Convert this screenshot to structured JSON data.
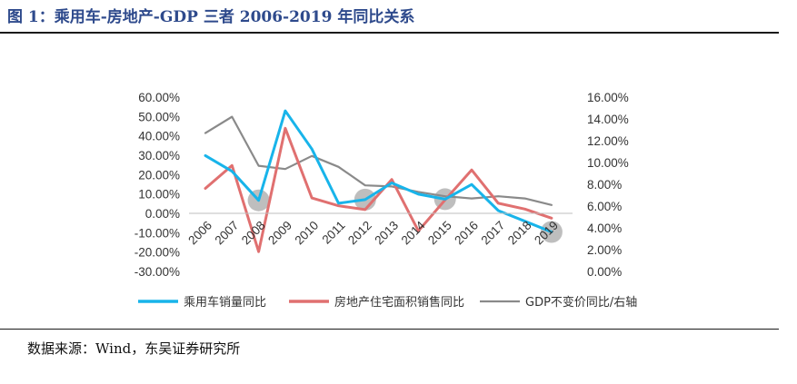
{
  "figure": {
    "title": "图 1：乘用车-房地产-GDP 三者 2006-2019 年同比关系",
    "source": "数据来源：Wind，东吴证券研究所"
  },
  "chart_data": {
    "type": "line",
    "categories": [
      "2006",
      "2007",
      "2008",
      "2009",
      "2010",
      "2011",
      "2012",
      "2013",
      "2014",
      "2015",
      "2016",
      "2017",
      "2018",
      "2019"
    ],
    "y_left": {
      "ticks": [
        "60.00%",
        "50.00%",
        "40.00%",
        "30.00%",
        "20.00%",
        "10.00%",
        "0.00%",
        "-10.00%",
        "-20.00%",
        "-30.00%"
      ],
      "ylim": [
        -30,
        60
      ]
    },
    "y_right": {
      "ticks": [
        "16.00%",
        "14.00%",
        "12.00%",
        "10.00%",
        "8.00%",
        "6.00%",
        "4.00%",
        "2.00%",
        "0.00%"
      ],
      "ylim": [
        0,
        16
      ]
    },
    "grid": false,
    "legend_position": "bottom",
    "series": [
      {
        "name": "乘用车销量同比",
        "axis": "left",
        "color": "#18b4ea",
        "values": [
          29.8,
          21.7,
          6.7,
          52.9,
          33.2,
          5.2,
          7.1,
          15.7,
          9.9,
          7.3,
          14.9,
          1.4,
          -4.1,
          -9.6
        ]
      },
      {
        "name": "房地产住宅面积销售同比",
        "axis": "left",
        "color": "#e07070",
        "values": [
          12.9,
          24.7,
          -19.8,
          43.9,
          7.9,
          3.9,
          1.9,
          17.5,
          -9.1,
          6.9,
          22.4,
          5.2,
          2.2,
          -2.5
        ]
      },
      {
        "name": "GDP不变价同比/右轴",
        "axis": "right",
        "color": "#8a8a8a",
        "values": [
          12.7,
          14.2,
          9.7,
          9.4,
          10.6,
          9.6,
          7.9,
          7.8,
          7.3,
          6.9,
          6.7,
          6.9,
          6.7,
          6.1
        ]
      }
    ],
    "highlight_markers": [
      "2008",
      "2012",
      "2015",
      "2019"
    ],
    "highlight_color": "#b3b3b3"
  }
}
